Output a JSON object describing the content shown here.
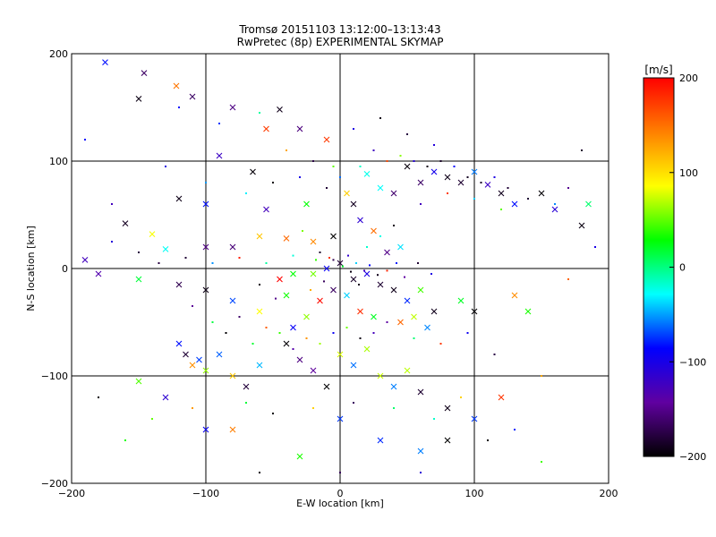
{
  "chart_data": {
    "type": "scatter",
    "title": "Tromsø 20151103 13:12:00–13:13:43",
    "subtitle": "RwPretec (8p) EXPERIMENTAL SKYMAP",
    "xlabel": "E-W location [km]",
    "ylabel": "N-S location [km]",
    "xlim": [
      -200,
      200
    ],
    "ylim": [
      -200,
      200
    ],
    "x_ticks": [
      -200,
      -100,
      0,
      100,
      200
    ],
    "y_ticks": [
      -200,
      -100,
      0,
      100,
      200
    ],
    "x_tick_labels": [
      "−200",
      "−100",
      "0",
      "100",
      "200"
    ],
    "y_tick_labels": [
      "−200",
      "−100",
      "0",
      "100",
      "200"
    ],
    "grid_lines_at": [
      -100,
      0,
      100
    ],
    "colorbar": {
      "label": "[m/s]",
      "range": [
        -200,
        200
      ],
      "ticks": [
        200,
        100,
        0,
        -100,
        -200
      ],
      "tick_labels": [
        "200",
        "100",
        "0",
        "−100",
        "−200"
      ],
      "colors_top_to_bottom": [
        "#ff0000",
        "#ff8000",
        "#ffff00",
        "#00ff00",
        "#00ffff",
        "#0000ff",
        "#6000a0",
        "#000000"
      ]
    },
    "series": [
      {
        "marker": "x",
        "points": [
          [
            -175,
            192
          ],
          [
            -146,
            182
          ],
          [
            -122,
            170
          ],
          [
            -110,
            160
          ],
          [
            -150,
            158
          ],
          [
            -80,
            150
          ],
          [
            -45,
            148
          ],
          [
            -30,
            130
          ],
          [
            -55,
            130
          ],
          [
            -10,
            120
          ],
          [
            -90,
            105
          ],
          [
            -65,
            90
          ],
          [
            -120,
            65
          ],
          [
            -100,
            60
          ],
          [
            -55,
            55
          ],
          [
            -25,
            60
          ],
          [
            -160,
            42
          ],
          [
            -140,
            32
          ],
          [
            -130,
            18
          ],
          [
            -100,
            20
          ],
          [
            -80,
            20
          ],
          [
            -60,
            30
          ],
          [
            -40,
            28
          ],
          [
            -20,
            25
          ],
          [
            -5,
            30
          ],
          [
            5,
            70
          ],
          [
            10,
            60
          ],
          [
            20,
            88
          ],
          [
            30,
            75
          ],
          [
            40,
            70
          ],
          [
            50,
            95
          ],
          [
            60,
            80
          ],
          [
            70,
            90
          ],
          [
            80,
            85
          ],
          [
            90,
            80
          ],
          [
            100,
            90
          ],
          [
            110,
            78
          ],
          [
            120,
            70
          ],
          [
            130,
            60
          ],
          [
            150,
            70
          ],
          [
            160,
            55
          ],
          [
            180,
            40
          ],
          [
            185,
            60
          ],
          [
            -190,
            8
          ],
          [
            -180,
            -5
          ],
          [
            -150,
            -10
          ],
          [
            -120,
            -15
          ],
          [
            -100,
            -20
          ],
          [
            -80,
            -30
          ],
          [
            -60,
            -40
          ],
          [
            -40,
            -25
          ],
          [
            -20,
            -5
          ],
          [
            -10,
            0
          ],
          [
            0,
            5
          ],
          [
            10,
            -10
          ],
          [
            20,
            -5
          ],
          [
            30,
            -15
          ],
          [
            40,
            -20
          ],
          [
            50,
            -30
          ],
          [
            60,
            -20
          ],
          [
            70,
            -40
          ],
          [
            90,
            -30
          ],
          [
            100,
            -40
          ],
          [
            130,
            -25
          ],
          [
            140,
            -40
          ],
          [
            -120,
            -70
          ],
          [
            -115,
            -80
          ],
          [
            -110,
            -90
          ],
          [
            -105,
            -85
          ],
          [
            -100,
            -95
          ],
          [
            -90,
            -80
          ],
          [
            -80,
            -100
          ],
          [
            -70,
            -110
          ],
          [
            -60,
            -90
          ],
          [
            -40,
            -70
          ],
          [
            -30,
            -85
          ],
          [
            -20,
            -95
          ],
          [
            -10,
            -110
          ],
          [
            0,
            -80
          ],
          [
            10,
            -90
          ],
          [
            20,
            -75
          ],
          [
            30,
            -100
          ],
          [
            40,
            -110
          ],
          [
            50,
            -95
          ],
          [
            60,
            -115
          ],
          [
            80,
            -130
          ],
          [
            100,
            -140
          ],
          [
            120,
            -120
          ],
          [
            -150,
            -105
          ],
          [
            -130,
            -120
          ],
          [
            -100,
            -150
          ],
          [
            -80,
            -150
          ],
          [
            -30,
            -175
          ],
          [
            0,
            -140
          ],
          [
            30,
            -160
          ],
          [
            60,
            -170
          ],
          [
            80,
            -160
          ],
          [
            -5,
            -20
          ],
          [
            5,
            -25
          ],
          [
            15,
            -40
          ],
          [
            25,
            -45
          ],
          [
            -15,
            -30
          ],
          [
            -25,
            -45
          ],
          [
            -35,
            -55
          ],
          [
            45,
            -50
          ],
          [
            55,
            -45
          ],
          [
            65,
            -55
          ],
          [
            -45,
            -10
          ],
          [
            -35,
            -5
          ],
          [
            35,
            15
          ],
          [
            45,
            20
          ],
          [
            25,
            35
          ],
          [
            15,
            45
          ]
        ]
      },
      {
        "marker": "dot",
        "points": [
          [
            -120,
            150
          ],
          [
            -90,
            135
          ],
          [
            -60,
            145
          ],
          [
            -40,
            110
          ],
          [
            -20,
            100
          ],
          [
            -5,
            95
          ],
          [
            10,
            130
          ],
          [
            30,
            140
          ],
          [
            50,
            125
          ],
          [
            70,
            115
          ],
          [
            -130,
            95
          ],
          [
            -100,
            80
          ],
          [
            -70,
            70
          ],
          [
            -50,
            80
          ],
          [
            -30,
            85
          ],
          [
            -10,
            75
          ],
          [
            0,
            85
          ],
          [
            15,
            95
          ],
          [
            25,
            110
          ],
          [
            35,
            100
          ],
          [
            45,
            105
          ],
          [
            55,
            100
          ],
          [
            65,
            95
          ],
          [
            75,
            100
          ],
          [
            85,
            95
          ],
          [
            95,
            85
          ],
          [
            105,
            80
          ],
          [
            115,
            85
          ],
          [
            125,
            75
          ],
          [
            140,
            65
          ],
          [
            160,
            60
          ],
          [
            170,
            75
          ],
          [
            -170,
            25
          ],
          [
            -150,
            15
          ],
          [
            -135,
            5
          ],
          [
            -115,
            10
          ],
          [
            -95,
            5
          ],
          [
            -75,
            10
          ],
          [
            -55,
            5
          ],
          [
            -35,
            12
          ],
          [
            -15,
            15
          ],
          [
            -5,
            8
          ],
          [
            2,
            2
          ],
          [
            8,
            -3
          ],
          [
            12,
            5
          ],
          [
            18,
            -2
          ],
          [
            22,
            3
          ],
          [
            28,
            -6
          ],
          [
            35,
            -2
          ],
          [
            42,
            5
          ],
          [
            48,
            -8
          ],
          [
            58,
            5
          ],
          [
            68,
            -5
          ],
          [
            -110,
            -35
          ],
          [
            -95,
            -50
          ],
          [
            -85,
            -60
          ],
          [
            -75,
            -45
          ],
          [
            -65,
            -70
          ],
          [
            -55,
            -55
          ],
          [
            -45,
            -60
          ],
          [
            -35,
            -75
          ],
          [
            -25,
            -65
          ],
          [
            -15,
            -70
          ],
          [
            -5,
            -60
          ],
          [
            5,
            -55
          ],
          [
            15,
            -65
          ],
          [
            25,
            -60
          ],
          [
            35,
            -50
          ],
          [
            55,
            -65
          ],
          [
            75,
            -70
          ],
          [
            95,
            -60
          ],
          [
            115,
            -80
          ],
          [
            -140,
            -140
          ],
          [
            -110,
            -130
          ],
          [
            -70,
            -125
          ],
          [
            -50,
            -135
          ],
          [
            -20,
            -130
          ],
          [
            10,
            -125
          ],
          [
            40,
            -130
          ],
          [
            70,
            -140
          ],
          [
            90,
            -120
          ],
          [
            110,
            -160
          ],
          [
            150,
            -180
          ],
          [
            -160,
            -160
          ],
          [
            -180,
            -120
          ],
          [
            -190,
            120
          ],
          [
            -170,
            60
          ],
          [
            180,
            110
          ],
          [
            190,
            20
          ],
          [
            170,
            -10
          ],
          [
            150,
            -100
          ],
          [
            130,
            -150
          ],
          [
            0,
            -190
          ],
          [
            -60,
            -190
          ],
          [
            60,
            -190
          ],
          [
            -8,
            10
          ],
          [
            6,
            12
          ],
          [
            -12,
            -12
          ],
          [
            14,
            -15
          ],
          [
            -18,
            8
          ],
          [
            20,
            20
          ],
          [
            -22,
            -20
          ],
          [
            30,
            30
          ],
          [
            -28,
            35
          ],
          [
            40,
            40
          ],
          [
            60,
            60
          ],
          [
            80,
            70
          ],
          [
            100,
            65
          ],
          [
            120,
            55
          ],
          [
            -60,
            -15
          ],
          [
            -48,
            -28
          ]
        ]
      }
    ]
  }
}
